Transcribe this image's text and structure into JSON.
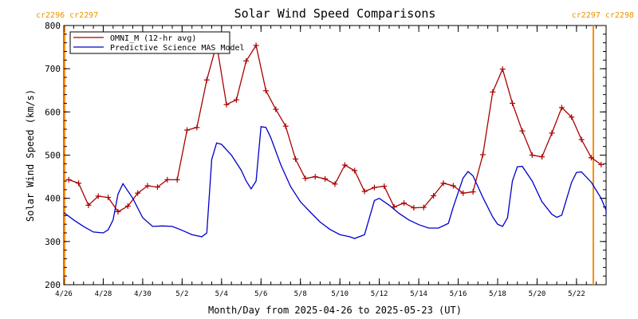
{
  "chart_data": {
    "type": "line",
    "title": "Solar Wind Speed Comparisons",
    "xlabel": "Month/Day from 2025-04-26 to 2025-05-23 (UT)",
    "ylabel": "Solar Wind Speed (km/s)",
    "xlim": [
      "2025-04-26T00:00",
      "2025-05-23T12:00"
    ],
    "ylim": [
      200,
      800
    ],
    "yticks": [
      "200",
      "300",
      "400",
      "500",
      "600",
      "700",
      "800"
    ],
    "xticks": [
      {
        "date": "2025-04-26",
        "label": "4/26"
      },
      {
        "date": "2025-04-28",
        "label": "4/28"
      },
      {
        "date": "2025-04-30",
        "label": "4/30"
      },
      {
        "date": "2025-05-02",
        "label": "5/2"
      },
      {
        "date": "2025-05-04",
        "label": "5/4"
      },
      {
        "date": "2025-05-06",
        "label": "5/6"
      },
      {
        "date": "2025-05-08",
        "label": "5/8"
      },
      {
        "date": "2025-05-10",
        "label": "5/10"
      },
      {
        "date": "2025-05-12",
        "label": "5/12"
      },
      {
        "date": "2025-05-14",
        "label": "5/14"
      },
      {
        "date": "2025-05-16",
        "label": "5/16"
      },
      {
        "date": "2025-05-18",
        "label": "5/18"
      },
      {
        "date": "2025-05-20",
        "label": "5/20"
      },
      {
        "date": "2025-05-22",
        "label": "5/22"
      }
    ],
    "carrington_markers": [
      {
        "date": "2025-04-26T00:00",
        "label": "cr2296 cr2297",
        "color": "#ff8c00"
      },
      {
        "date": "2025-05-23T12:00",
        "label": "cr2297 cr2298",
        "color": "#ff8c00"
      }
    ],
    "legend_position": "top-left",
    "series": [
      {
        "name": "OMNI_M (12-hr avg)",
        "color": "#aa0000",
        "marker": "plus",
        "points": [
          [
            "2025-04-26T06:00",
            443
          ],
          [
            "2025-04-26T18:00",
            435
          ],
          [
            "2025-04-27T06:00",
            384
          ],
          [
            "2025-04-27T18:00",
            405
          ],
          [
            "2025-04-28T06:00",
            402
          ],
          [
            "2025-04-28T18:00",
            369
          ],
          [
            "2025-04-29T06:00",
            382
          ],
          [
            "2025-04-29T18:00",
            412
          ],
          [
            "2025-04-30T06:00",
            429
          ],
          [
            "2025-04-30T18:00",
            426
          ],
          [
            "2025-05-01T06:00",
            443
          ],
          [
            "2025-05-01T18:00",
            443
          ],
          [
            "2025-05-02T06:00",
            558
          ],
          [
            "2025-05-02T18:00",
            564
          ],
          [
            "2025-05-03T06:00",
            674
          ],
          [
            "2025-05-03T18:00",
            757
          ],
          [
            "2025-05-04T06:00",
            617
          ],
          [
            "2025-05-04T18:00",
            628
          ],
          [
            "2025-05-05T06:00",
            718
          ],
          [
            "2025-05-05T18:00",
            754
          ],
          [
            "2025-05-06T06:00",
            649
          ],
          [
            "2025-05-06T18:00",
            606
          ],
          [
            "2025-05-07T06:00",
            567
          ],
          [
            "2025-05-07T18:00",
            491
          ],
          [
            "2025-05-08T06:00",
            446
          ],
          [
            "2025-05-08T18:00",
            450
          ],
          [
            "2025-05-09T06:00",
            445
          ],
          [
            "2025-05-09T18:00",
            433
          ],
          [
            "2025-05-10T06:00",
            477
          ],
          [
            "2025-05-10T18:00",
            464
          ],
          [
            "2025-05-11T06:00",
            416
          ],
          [
            "2025-05-11T18:00",
            425
          ],
          [
            "2025-05-12T06:00",
            428
          ],
          [
            "2025-05-12T18:00",
            380
          ],
          [
            "2025-05-13T06:00",
            389
          ],
          [
            "2025-05-13T18:00",
            378
          ],
          [
            "2025-05-14T06:00",
            379
          ],
          [
            "2025-05-14T18:00",
            406
          ],
          [
            "2025-05-15T06:00",
            435
          ],
          [
            "2025-05-15T18:00",
            429
          ],
          [
            "2025-05-16T06:00",
            412
          ],
          [
            "2025-05-16T18:00",
            415
          ],
          [
            "2025-05-17T06:00",
            501
          ],
          [
            "2025-05-17T18:00",
            646
          ],
          [
            "2025-05-18T06:00",
            699
          ],
          [
            "2025-05-18T18:00",
            620
          ],
          [
            "2025-05-19T06:00",
            556
          ],
          [
            "2025-05-19T18:00",
            500
          ],
          [
            "2025-05-20T06:00",
            496
          ],
          [
            "2025-05-20T18:00",
            551
          ],
          [
            "2025-05-21T06:00",
            610
          ],
          [
            "2025-05-21T18:00",
            588
          ],
          [
            "2025-05-22T06:00",
            536
          ],
          [
            "2025-05-22T18:00",
            494
          ],
          [
            "2025-05-23T06:00",
            478
          ]
        ]
      },
      {
        "name": "Predictive Science MAS Model",
        "color": "#0000cc",
        "marker": "none",
        "points": [
          [
            "2025-04-26T00:00",
            367
          ],
          [
            "2025-04-26T12:00",
            350
          ],
          [
            "2025-04-27T00:00",
            335
          ],
          [
            "2025-04-27T12:00",
            322
          ],
          [
            "2025-04-28T00:00",
            320
          ],
          [
            "2025-04-28T06:00",
            327
          ],
          [
            "2025-04-28T12:00",
            350
          ],
          [
            "2025-04-28T18:00",
            410
          ],
          [
            "2025-04-29T00:00",
            434
          ],
          [
            "2025-04-29T12:00",
            400
          ],
          [
            "2025-04-30T00:00",
            355
          ],
          [
            "2025-04-30T12:00",
            335
          ],
          [
            "2025-05-01T00:00",
            336
          ],
          [
            "2025-05-01T12:00",
            335
          ],
          [
            "2025-05-02T00:00",
            326
          ],
          [
            "2025-05-02T12:00",
            316
          ],
          [
            "2025-05-03T00:00",
            311
          ],
          [
            "2025-05-03T06:00",
            320
          ],
          [
            "2025-05-03T12:00",
            490
          ],
          [
            "2025-05-03T18:00",
            528
          ],
          [
            "2025-05-04T00:00",
            525
          ],
          [
            "2025-05-04T12:00",
            500
          ],
          [
            "2025-05-05T00:00",
            465
          ],
          [
            "2025-05-05T06:00",
            440
          ],
          [
            "2025-05-05T12:00",
            422
          ],
          [
            "2025-05-05T18:00",
            440
          ],
          [
            "2025-05-06T00:00",
            566
          ],
          [
            "2025-05-06T06:00",
            564
          ],
          [
            "2025-05-06T12:00",
            540
          ],
          [
            "2025-05-07T00:00",
            478
          ],
          [
            "2025-05-07T12:00",
            427
          ],
          [
            "2025-05-08T00:00",
            392
          ],
          [
            "2025-05-08T12:00",
            368
          ],
          [
            "2025-05-09T00:00",
            345
          ],
          [
            "2025-05-09T12:00",
            328
          ],
          [
            "2025-05-10T00:00",
            316
          ],
          [
            "2025-05-10T12:00",
            311
          ],
          [
            "2025-05-10T18:00",
            307
          ],
          [
            "2025-05-11T06:00",
            316
          ],
          [
            "2025-05-11T18:00",
            395
          ],
          [
            "2025-05-12T00:00",
            400
          ],
          [
            "2025-05-12T12:00",
            384
          ],
          [
            "2025-05-13T00:00",
            365
          ],
          [
            "2025-05-13T12:00",
            350
          ],
          [
            "2025-05-14T00:00",
            339
          ],
          [
            "2025-05-14T12:00",
            331
          ],
          [
            "2025-05-15T00:00",
            331
          ],
          [
            "2025-05-15T12:00",
            342
          ],
          [
            "2025-05-15T18:00",
            380
          ],
          [
            "2025-05-16T06:00",
            447
          ],
          [
            "2025-05-16T12:00",
            462
          ],
          [
            "2025-05-16T18:00",
            452
          ],
          [
            "2025-05-17T06:00",
            402
          ],
          [
            "2025-05-17T18:00",
            357
          ],
          [
            "2025-05-18T00:00",
            340
          ],
          [
            "2025-05-18T06:00",
            335
          ],
          [
            "2025-05-18T12:00",
            355
          ],
          [
            "2025-05-18T18:00",
            440
          ],
          [
            "2025-05-19T00:00",
            473
          ],
          [
            "2025-05-19T06:00",
            474
          ],
          [
            "2025-05-19T18:00",
            440
          ],
          [
            "2025-05-20T06:00",
            392
          ],
          [
            "2025-05-20T18:00",
            363
          ],
          [
            "2025-05-21T00:00",
            356
          ],
          [
            "2025-05-21T06:00",
            361
          ],
          [
            "2025-05-21T18:00",
            437
          ],
          [
            "2025-05-22T00:00",
            460
          ],
          [
            "2025-05-22T06:00",
            461
          ],
          [
            "2025-05-22T18:00",
            437
          ],
          [
            "2025-05-23T06:00",
            400
          ],
          [
            "2025-05-23T18:00",
            372
          ],
          [
            "2025-05-24T00:00",
            364
          ]
        ]
      }
    ]
  }
}
